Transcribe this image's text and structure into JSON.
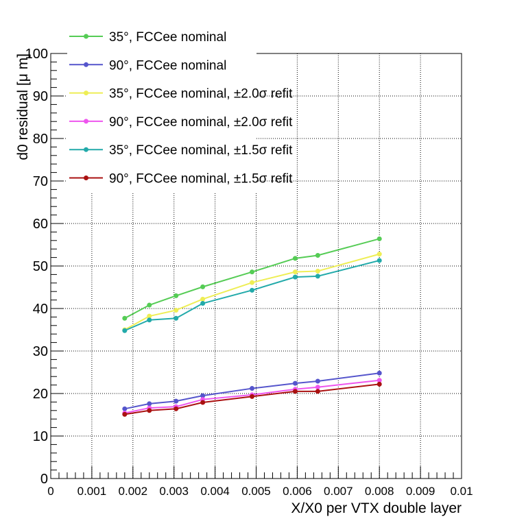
{
  "chart_data": {
    "type": "line",
    "title": "",
    "xlabel": "X/X0 per VTX double layer",
    "ylabel": "d0 residual [μ m]",
    "xlim": [
      0,
      0.01
    ],
    "ylim": [
      0,
      100
    ],
    "grid": true,
    "legend_position": "top-left",
    "x_ticks": [
      "0",
      "0.001",
      "0.002",
      "0.003",
      "0.004",
      "0.005",
      "0.006",
      "0.007",
      "0.008",
      "0.009",
      "0.01"
    ],
    "y_ticks": [
      "0",
      "10",
      "20",
      "30",
      "40",
      "50",
      "60",
      "70",
      "80",
      "90",
      "100"
    ],
    "x": [
      0.0018,
      0.0024,
      0.00305,
      0.0037,
      0.0049,
      0.00595,
      0.0065,
      0.008
    ],
    "series": [
      {
        "name": "35°, FCCee nominal",
        "color": "#55cc55",
        "values": [
          37.7,
          40.8,
          43.0,
          45.1,
          48.6,
          51.8,
          52.5,
          56.4
        ]
      },
      {
        "name": "90°, FCCee nominal",
        "color": "#5555cc",
        "values": [
          16.4,
          17.6,
          18.2,
          19.5,
          21.2,
          22.4,
          22.9,
          24.8
        ]
      },
      {
        "name": "35°, FCCee nominal, ±2.0σ refit",
        "color": "#eeee55",
        "values": [
          35.0,
          38.2,
          39.6,
          42.2,
          46.1,
          48.6,
          48.8,
          52.8
        ]
      },
      {
        "name": "90°, FCCee nominal, ±2.0σ refit",
        "color": "#ee55ee",
        "values": [
          15.4,
          16.6,
          16.9,
          18.6,
          19.7,
          21.0,
          21.5,
          23.1
        ]
      },
      {
        "name": "35°, FCCee nominal, ±1.5σ refit",
        "color": "#22aaaa",
        "values": [
          34.8,
          37.3,
          37.7,
          41.2,
          44.3,
          47.4,
          47.6,
          51.3
        ]
      },
      {
        "name": "90°, FCCee nominal, ±1.5σ refit",
        "color": "#aa1111",
        "values": [
          15.1,
          16.0,
          16.4,
          17.9,
          19.3,
          20.5,
          20.5,
          22.2
        ]
      }
    ]
  }
}
